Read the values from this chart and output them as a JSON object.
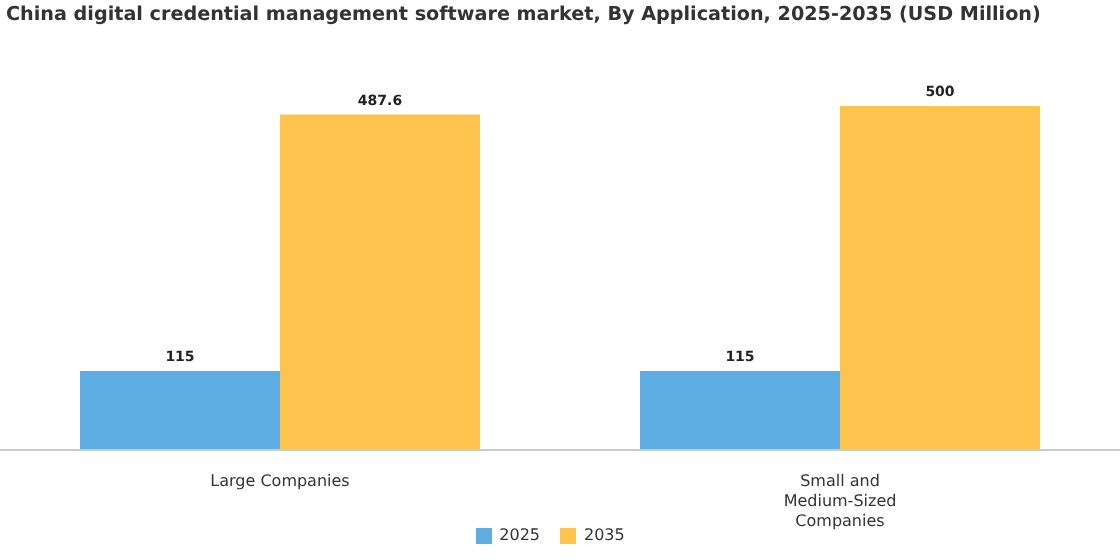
{
  "chart_data": {
    "type": "bar",
    "title": "China digital credential management software market, By Application, 2025-2035 (USD Million)",
    "categories": [
      "Large Companies",
      "Small and Medium-Sized Companies"
    ],
    "series": [
      {
        "name": "2025",
        "color": "#5dade2",
        "values": [
          115,
          115
        ]
      },
      {
        "name": "2035",
        "color": "#fcc44c",
        "values": [
          487.6,
          500
        ]
      }
    ],
    "data_labels": true,
    "legend": "bottom",
    "grid": false
  }
}
